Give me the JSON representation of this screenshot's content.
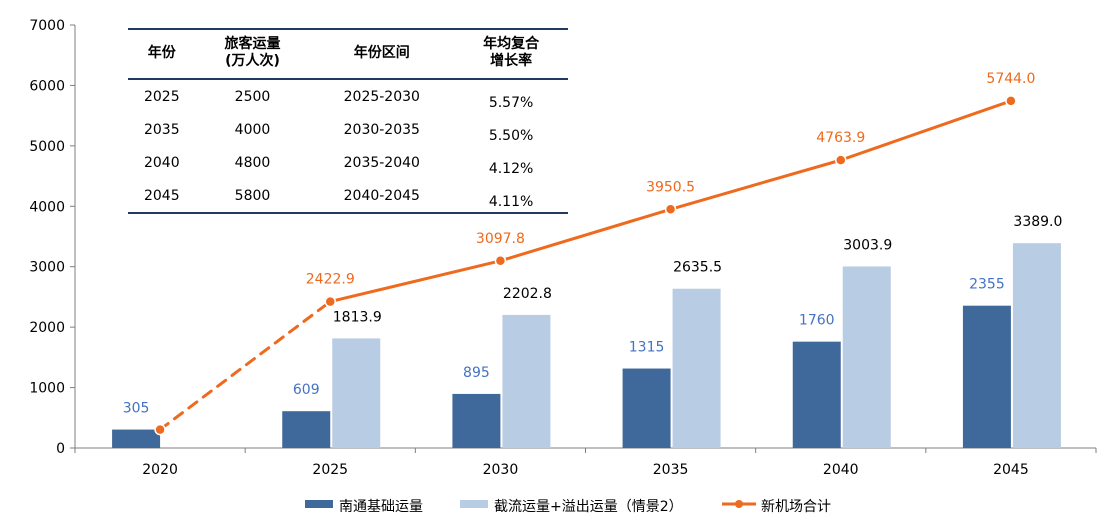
{
  "chart_data": {
    "type": "bar",
    "categories": [
      "2020",
      "2025",
      "2030",
      "2035",
      "2040",
      "2045"
    ],
    "ylim": [
      0,
      7000
    ],
    "yticks": [
      0,
      1000,
      2000,
      3000,
      4000,
      5000,
      6000,
      7000
    ],
    "series": [
      {
        "name": "南通基础运量",
        "type": "bar",
        "color": "#40699B",
        "values": [
          305,
          609,
          895,
          1315,
          1760,
          2355
        ],
        "labels": [
          "305",
          "609",
          "895",
          "1315",
          "1760",
          "2355"
        ]
      },
      {
        "name": "截流运量+溢出运量（情景2）",
        "type": "bar",
        "color": "#B8CCE4",
        "values": [
          null,
          1813.9,
          2202.8,
          2635.5,
          3003.9,
          3389.0
        ],
        "labels": [
          "",
          "1813.9",
          "2202.8",
          "2635.5",
          "3003.9",
          "3389.0"
        ]
      },
      {
        "name": "新机场合计",
        "type": "line",
        "color": "#ED6A1E",
        "values": [
          305,
          2422.9,
          3097.8,
          3950.5,
          4763.9,
          5744.0
        ],
        "labels": [
          "",
          "2422.9",
          "3097.8",
          "3950.5",
          "4763.9",
          "5744.0"
        ],
        "dashed_segments": [
          0
        ]
      }
    ],
    "legend_position": "bottom"
  },
  "table": {
    "headers": [
      "年份",
      "旅客运量\n(万人次)",
      "年份区间",
      "年均复合\n增长率"
    ],
    "rows": [
      [
        "2025",
        "2500",
        "2025-2030",
        "5.57%"
      ],
      [
        "2035",
        "4000",
        "2030-2035",
        "5.50%"
      ],
      [
        "2040",
        "4800",
        "2035-2040",
        "4.12%"
      ],
      [
        "2045",
        "5800",
        "2040-2045",
        "4.11%"
      ]
    ]
  }
}
